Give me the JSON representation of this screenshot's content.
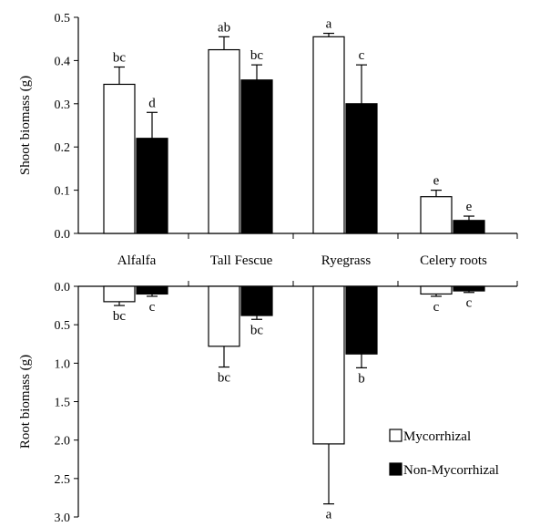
{
  "colors": {
    "mycorrhizal": "#ffffff",
    "non_mycorrhizal": "#000000",
    "axis": "#000000"
  },
  "legend": {
    "placement": "bottom-right",
    "items": [
      "Mycorrhizal",
      "Non-Mycorrhizal"
    ]
  },
  "chart_data": [
    {
      "type": "bar",
      "categories": [
        "Alfalfa",
        "Tall Fescue",
        "Ryegrass",
        "Celery roots"
      ],
      "ylabel": "Shoot biomass (g)",
      "ylim": [
        0,
        0.5
      ],
      "yticks": [
        "0.0",
        "0.1",
        "0.2",
        "0.3",
        "0.4",
        "0.5"
      ],
      "series": [
        {
          "name": "Mycorrhizal",
          "values": [
            0.345,
            0.425,
            0.455,
            0.085
          ],
          "errors": [
            0.04,
            0.03,
            0.008,
            0.015
          ],
          "letters": [
            "bc",
            "ab",
            "a",
            "e"
          ]
        },
        {
          "name": "Non-Mycorrhizal",
          "values": [
            0.22,
            0.355,
            0.3,
            0.03
          ],
          "errors": [
            0.06,
            0.035,
            0.09,
            0.01
          ],
          "letters": [
            "d",
            "bc",
            "c",
            "e"
          ]
        }
      ]
    },
    {
      "type": "bar",
      "categories": [
        "Alfalfa",
        "Tall Fescue",
        "Ryegrass",
        "Celery roots"
      ],
      "ylabel": "Root biomass (g)",
      "ylim": [
        0,
        3.0
      ],
      "inverted": true,
      "yticks": [
        "0.0",
        "0.5",
        "1.0",
        "1.5",
        "2.0",
        "2.5",
        "3.0"
      ],
      "series": [
        {
          "name": "Mycorrhizal",
          "values": [
            0.2,
            0.78,
            2.05,
            0.1
          ],
          "errors": [
            0.05,
            0.27,
            0.78,
            0.03
          ],
          "letters": [
            "bc",
            "bc",
            "a",
            "c"
          ]
        },
        {
          "name": "Non-Mycorrhizal",
          "values": [
            0.1,
            0.38,
            0.88,
            0.06
          ],
          "errors": [
            0.03,
            0.05,
            0.18,
            0.02
          ],
          "letters": [
            "c",
            "bc",
            "b",
            "c"
          ]
        }
      ]
    }
  ]
}
